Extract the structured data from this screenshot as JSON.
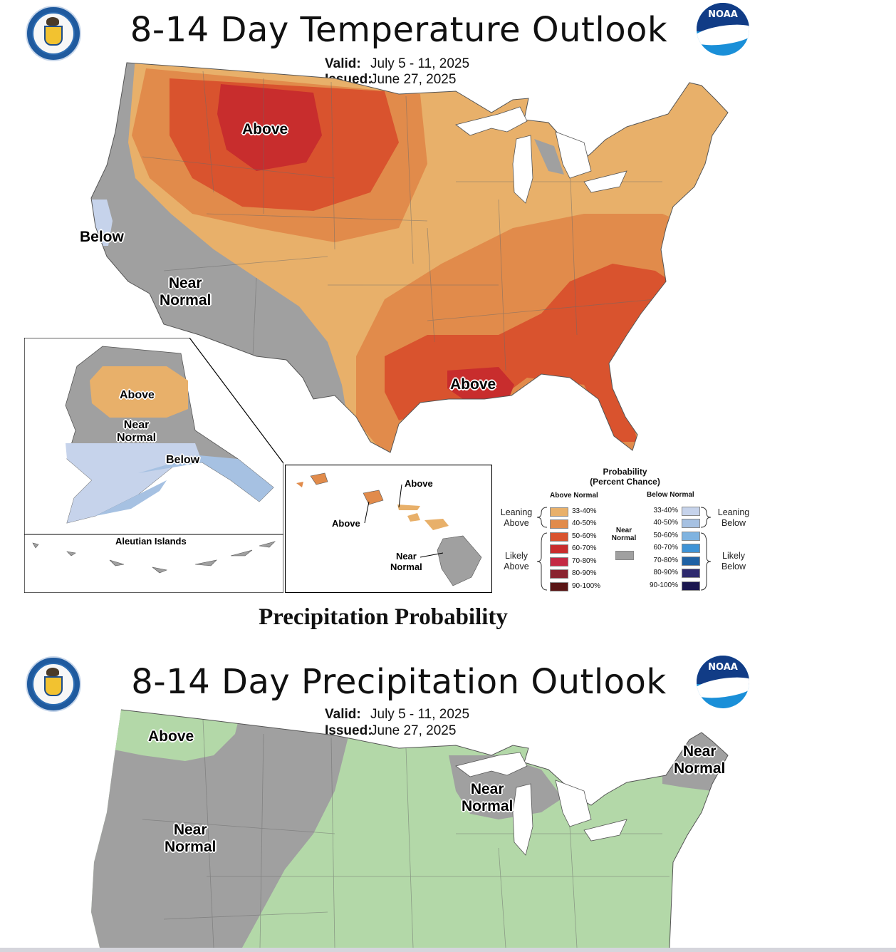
{
  "temperature": {
    "title": "8-14 Day Temperature Outlook",
    "valid_label": "Valid:",
    "valid_value": "July 5 - 11, 2025",
    "issued_label": "Issued:",
    "issued_value": "June 27, 2025",
    "labels": {
      "above_north": "Above",
      "above_gulf": "Above",
      "below_west": "Below",
      "near_normal_sw_1": "Near",
      "near_normal_sw_2": "Normal"
    },
    "alaska": {
      "above": "Above",
      "near_1": "Near",
      "near_2": "Normal",
      "below": "Below",
      "aleutian": "Aleutian Islands"
    },
    "hawaii": {
      "above_1": "Above",
      "above_2": "Above",
      "near_1": "Near",
      "near_2": "Normal"
    },
    "colors": {
      "above_33_40": "#e8b06a",
      "above_40_50": "#e18b4b",
      "above_50_60": "#d9532e",
      "above_60_70": "#c82d2d",
      "near_normal": "#a0a0a0",
      "below_33_40": "#c6d3eb",
      "below_40_50": "#a6c1e2"
    }
  },
  "legend": {
    "title_1": "Probability",
    "title_2": "(Percent Chance)",
    "above_header": "Above Normal",
    "below_header": "Below Normal",
    "leaning_above_1": "Leaning",
    "leaning_above_2": "Above",
    "likely_above_1": "Likely",
    "likely_above_2": "Above",
    "leaning_below_1": "Leaning",
    "leaning_below_2": "Below",
    "likely_below_1": "Likely",
    "likely_below_2": "Below",
    "near_1": "Near",
    "near_2": "Normal",
    "near_color": "#a0a0a0",
    "above_items": [
      {
        "label": "33-40%",
        "color": "#e8b06a"
      },
      {
        "label": "40-50%",
        "color": "#e18b4b"
      },
      {
        "label": "50-60%",
        "color": "#d9532e"
      },
      {
        "label": "60-70%",
        "color": "#c82d2d"
      },
      {
        "label": "70-80%",
        "color": "#c42a44"
      },
      {
        "label": "80-90%",
        "color": "#8a2430"
      },
      {
        "label": "90-100%",
        "color": "#5a1515"
      }
    ],
    "below_items": [
      {
        "label": "33-40%",
        "color": "#c6d3eb"
      },
      {
        "label": "40-50%",
        "color": "#a6c1e2"
      },
      {
        "label": "50-60%",
        "color": "#7fb3e0"
      },
      {
        "label": "60-70%",
        "color": "#3f93d6"
      },
      {
        "label": "70-80%",
        "color": "#2062a4"
      },
      {
        "label": "80-90%",
        "color": "#2e2a6e"
      },
      {
        "label": "90-100%",
        "color": "#1b174f"
      }
    ]
  },
  "section_heading": "Precipitation Probability",
  "precipitation": {
    "title": "8-14 Day Precipitation Outlook",
    "valid_label": "Valid:",
    "valid_value": "July 5 - 11, 2025",
    "issued_label": "Issued:",
    "issued_value": "June 27, 2025",
    "labels": {
      "above_nw": "Above",
      "near_west_1": "Near",
      "near_west_2": "Normal",
      "near_lakes_1": "Near",
      "near_lakes_2": "Normal",
      "near_ne_1": "Near",
      "near_ne_2": "Normal"
    },
    "colors": {
      "above_33_40": "#b3d8a8",
      "near_normal": "#a0a0a0"
    }
  },
  "logos": {
    "commerce_seal": "department-of-commerce-seal",
    "noaa_text": "NOAA"
  }
}
